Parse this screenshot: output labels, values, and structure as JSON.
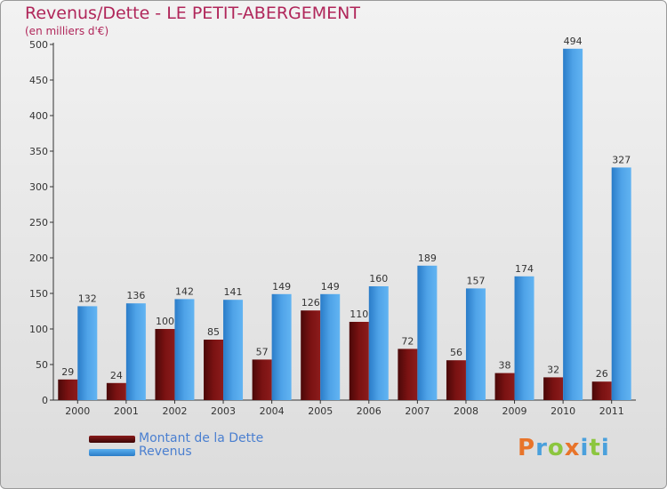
{
  "chart_data": {
    "type": "bar",
    "title": "Revenus/Dette - LE PETIT-ABERGEMENT",
    "subtitle": "(en milliers d'€)",
    "categories": [
      "2000",
      "2001",
      "2002",
      "2003",
      "2004",
      "2005",
      "2006",
      "2007",
      "2008",
      "2009",
      "2010",
      "2011"
    ],
    "series": [
      {
        "name": "Montant de la Dette",
        "color": "#7a1010",
        "values": [
          29,
          24,
          100,
          85,
          57,
          126,
          110,
          72,
          56,
          38,
          32,
          26
        ]
      },
      {
        "name": "Revenus",
        "color": "#4fa3e8",
        "values": [
          132,
          136,
          142,
          141,
          149,
          149,
          160,
          189,
          157,
          174,
          494,
          327
        ]
      }
    ],
    "ylim": [
      0,
      500
    ],
    "yticks": [
      0,
      50,
      100,
      150,
      200,
      250,
      300,
      350,
      400,
      450,
      500
    ],
    "grid": false,
    "legend": "bottom-left"
  },
  "logo": {
    "text": "Proxiti",
    "letters": [
      {
        "ch": "P",
        "color": "#e8742a"
      },
      {
        "ch": "r",
        "color": "#4aa0dc"
      },
      {
        "ch": "o",
        "color": "#8cc63f"
      },
      {
        "ch": "x",
        "color": "#e8742a"
      },
      {
        "ch": "i",
        "color": "#4aa0dc"
      },
      {
        "ch": "t",
        "color": "#8cc63f"
      },
      {
        "ch": "i",
        "color": "#4aa0dc"
      }
    ]
  }
}
